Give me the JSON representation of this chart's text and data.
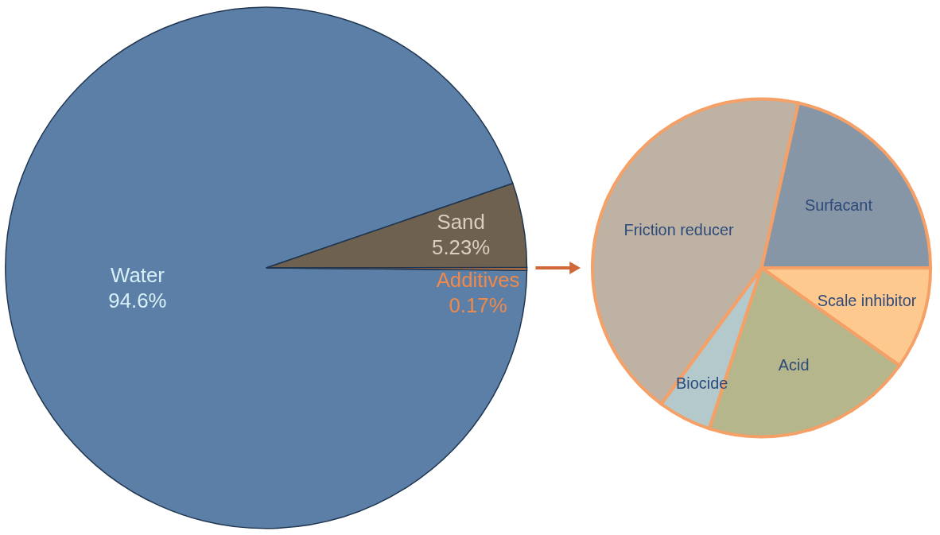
{
  "chart_data": [
    {
      "type": "pie",
      "categories": [
        "Water",
        "Sand",
        "Additives"
      ],
      "values": [
        94.6,
        5.23,
        0.17
      ],
      "colors": [
        "#5b7fa6",
        "#6e6150",
        "#f0883e"
      ],
      "value_labels": [
        "94.6%",
        "5.23%",
        "0.17%"
      ],
      "legend": false
    },
    {
      "type": "pie",
      "categories": [
        "Surfacant",
        "Scale inhibitor",
        "Acid",
        "Biocide",
        "Friction reducer"
      ],
      "values": [
        21.5,
        9.8,
        20.2,
        5.1,
        43.4
      ],
      "colors": [
        "#8696a7",
        "#fec98f",
        "#b5b68c",
        "#b4c9cc",
        "#bdb2a4"
      ],
      "legend": false
    }
  ]
}
